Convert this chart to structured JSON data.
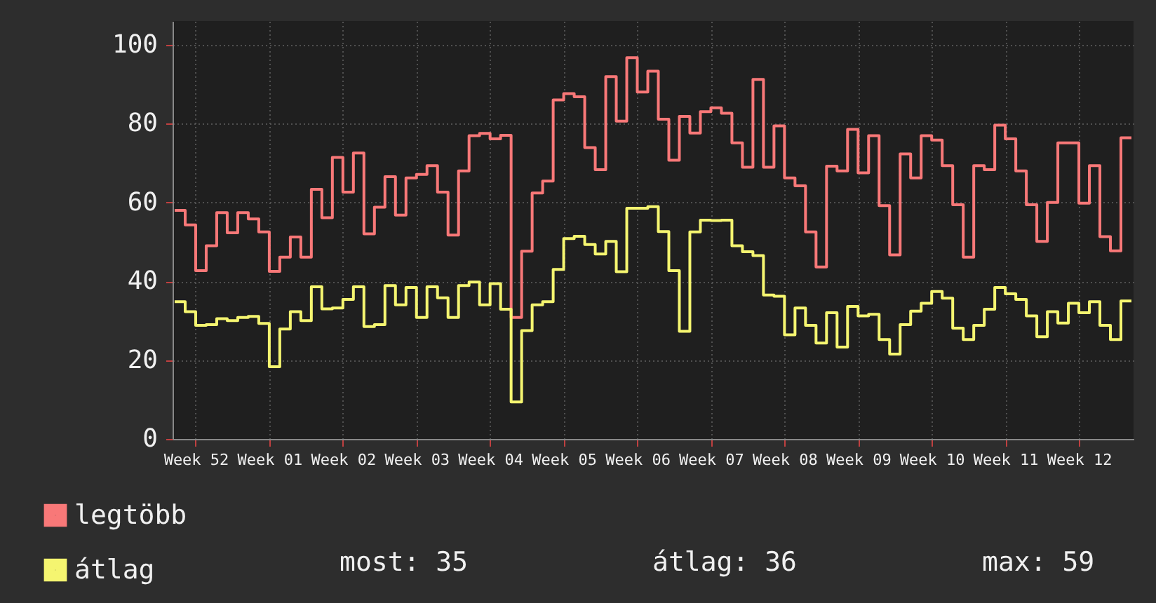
{
  "chart_data": {
    "type": "step",
    "categories": [
      null,
      null,
      "Week 52",
      null,
      null,
      null,
      null,
      null,
      null,
      "Week 01",
      null,
      null,
      null,
      null,
      null,
      null,
      "Week 02",
      null,
      null,
      null,
      null,
      null,
      null,
      "Week 03",
      null,
      null,
      null,
      null,
      null,
      null,
      "Week 04",
      null,
      null,
      null,
      null,
      null,
      null,
      "Week 05",
      null,
      null,
      null,
      null,
      null,
      null,
      "Week 06",
      null,
      null,
      null,
      null,
      null,
      null,
      "Week 07",
      null,
      null,
      null,
      null,
      null,
      null,
      "Week 08",
      null,
      null,
      null,
      null,
      null,
      null,
      "Week 09",
      null,
      null,
      null,
      null,
      null,
      null,
      "Week 10",
      null,
      null,
      null,
      null,
      null,
      null,
      "Week 11",
      null,
      null,
      null,
      null,
      null,
      null,
      "Week 12",
      null,
      null,
      null,
      null,
      null
    ],
    "series": [
      {
        "name": "legtöbb",
        "color": "#f87878",
        "values": [
          58,
          54.3,
          42.7,
          49,
          57.4,
          52.3,
          57.4,
          55.8,
          52.5,
          42.5,
          46.1,
          51.2,
          46.1,
          63.3,
          56.1,
          71.4,
          62.6,
          72.5,
          52,
          58.8,
          66.5,
          56.8,
          66.2,
          67.1,
          69.3,
          62.6,
          51.7,
          68,
          76.9,
          77.5,
          76.1,
          77,
          30.8,
          47.6,
          62.4,
          65.4,
          86,
          87.6,
          86.8,
          73.9,
          68.3,
          91.9,
          80.6,
          96.7,
          88,
          93.3,
          81.1,
          70.7,
          81.8,
          77.6,
          83,
          84,
          82.6,
          75.1,
          68.9,
          91.2,
          68.9,
          79.4,
          66.2,
          64.2,
          52.5,
          43.6,
          69.2,
          68,
          78.5,
          67.5,
          76.9,
          59.2,
          46.7,
          72.3,
          66.2,
          76.9,
          75.8,
          69.3,
          59.4,
          46.1,
          69.3,
          68.3,
          79.6,
          76.1,
          68,
          59.4,
          50.1,
          60,
          75.1,
          75.1,
          59.8,
          69.3,
          51.3,
          47.7,
          76.4,
          76.4
        ]
      },
      {
        "name": "átlag",
        "color": "#f5f570",
        "values": [
          34.8,
          32.3,
          28.8,
          29,
          30.5,
          30,
          30.8,
          31.1,
          29.3,
          18.3,
          27.9,
          32.3,
          30,
          38.6,
          33,
          33.2,
          35.4,
          38.6,
          28.5,
          29,
          38.9,
          34,
          38.4,
          30.8,
          38.6,
          35.8,
          30.8,
          38.9,
          39.8,
          34,
          39.4,
          32.9,
          9.4,
          27.5,
          34,
          34.8,
          43,
          50.8,
          51.4,
          49.3,
          46.9,
          50.1,
          42.4,
          58.5,
          58.5,
          58.9,
          52.6,
          42.7,
          27.3,
          52.5,
          55.5,
          55.4,
          55.5,
          49,
          47.5,
          46.5,
          36.5,
          36.2,
          26.4,
          33.2,
          28.8,
          24.3,
          32,
          23.3,
          33.6,
          31.2,
          31.6,
          25.2,
          21.5,
          29,
          32.4,
          34.4,
          37.4,
          35.7,
          28.1,
          25.2,
          28.8,
          32.9,
          38.4,
          36.8,
          35.4,
          31.2,
          25.9,
          32.3,
          29.4,
          34.4,
          32,
          34.8,
          28.8,
          25.2,
          35,
          35
        ]
      }
    ],
    "ylim": [
      0,
      106
    ],
    "yticks": [
      0,
      20,
      40,
      60,
      80,
      100
    ],
    "grid": true,
    "legend": "bottom",
    "annotations": [
      "most: 35",
      "átlag: 36",
      "max: 59"
    ]
  }
}
